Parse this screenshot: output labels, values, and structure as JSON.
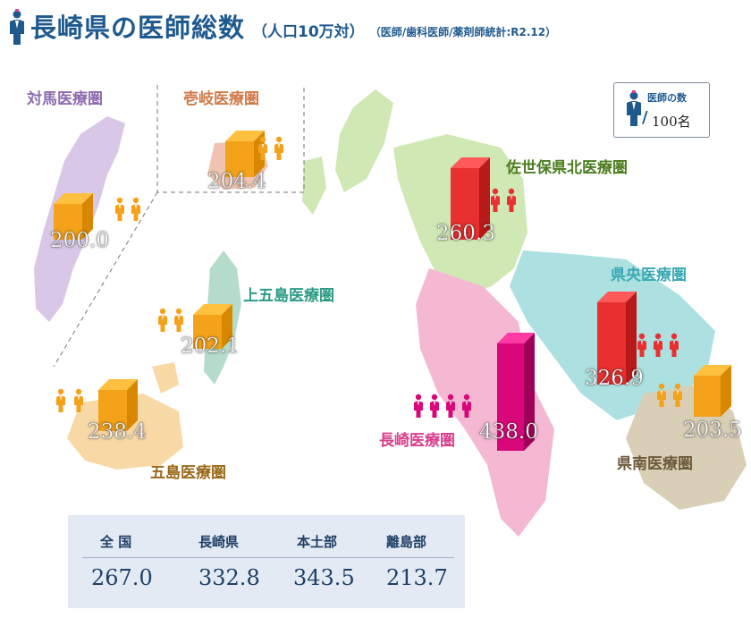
{
  "title": {
    "main": "長崎県の医師総数",
    "sub": "（人口10万対）",
    "note": "（医師/歯科医師/薬剤師統計:R2.12）"
  },
  "legend": {
    "title": "医師の数",
    "unit": "100名"
  },
  "regions": {
    "tsushima": {
      "name": "対馬医療圏",
      "value": "200.0",
      "color": "#8e6cb0"
    },
    "iki": {
      "name": "壱岐医療圏",
      "value": "204.4",
      "color": "#d07a4a"
    },
    "sasebo": {
      "name": "佐世保県北医療圏",
      "value": "260.3",
      "color": "#5a8a2a"
    },
    "kamigoto": {
      "name": "上五島医療圏",
      "value": "202.1",
      "color": "#3a9a8a"
    },
    "kenou": {
      "name": "県央医療圏",
      "value": "326.9",
      "color": "#4ab0b5"
    },
    "goto": {
      "name": "五島医療圏",
      "value": "238.4",
      "color": "#9a6a1a"
    },
    "nagasaki": {
      "name": "長崎医療圏",
      "value": "438.0",
      "color": "#d8408e"
    },
    "kennan": {
      "name": "県南医療圏",
      "value": "203.5",
      "color": "#6e5a3a"
    }
  },
  "stats": {
    "headers": [
      "全 国",
      "長崎県",
      "本土部",
      "離島部"
    ],
    "values": [
      "267.0",
      "332.8",
      "343.5",
      "213.7"
    ]
  }
}
